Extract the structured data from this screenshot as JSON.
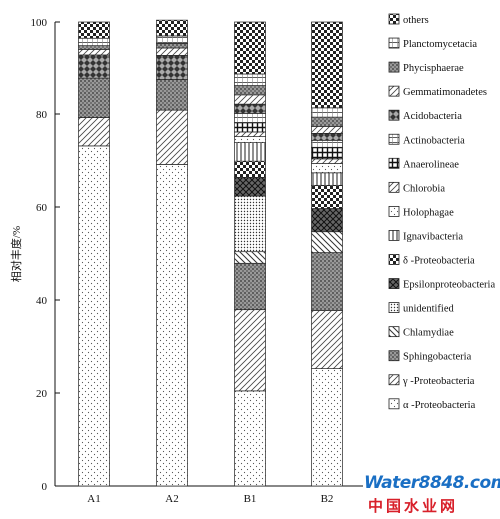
{
  "chart_data": {
    "type": "bar",
    "stacked": true,
    "categories": [
      "A1",
      "A2",
      "B1",
      "B2"
    ],
    "ylabel": "相对丰度/%",
    "ylim": [
      0,
      100
    ],
    "yticks": [
      "0",
      "20",
      "40",
      "60",
      "80",
      "100"
    ],
    "legend_position": "right",
    "series": [
      {
        "name": "α -Proteobacteria",
        "pattern": "dots",
        "values": [
          73.3,
          69.3,
          20.5,
          25.3
        ]
      },
      {
        "name": "γ -Proteobacteria",
        "pattern": "diagonal",
        "values": [
          6.1,
          11.7,
          17.5,
          12.5
        ]
      },
      {
        "name": "Sphingobacteria",
        "pattern": "dense-dots",
        "values": [
          8.5,
          6.6,
          10.0,
          12.5
        ]
      },
      {
        "name": "Chlamydiae",
        "pattern": "backslash",
        "values": [
          0,
          0,
          2.5,
          4.5
        ]
      },
      {
        "name": "unidentified",
        "pattern": "fine-dots",
        "values": [
          0,
          0,
          12.0,
          0
        ]
      },
      {
        "name": "Epsilonproteobacteria",
        "pattern": "crosshatch",
        "values": [
          0,
          0,
          4.0,
          5.0
        ]
      },
      {
        "name": "δ -Proteobacteria",
        "pattern": "checker",
        "values": [
          0,
          0,
          3.5,
          5.0
        ]
      },
      {
        "name": "Ignavibacteria",
        "pattern": "vertical",
        "values": [
          0,
          0,
          4.0,
          2.7
        ]
      },
      {
        "name": "Holophagae",
        "pattern": "dots",
        "values": [
          0,
          0,
          1.3,
          2.0
        ]
      },
      {
        "name": "Chlorobia",
        "pattern": "diagonal",
        "values": [
          0,
          0,
          1.0,
          1.0
        ]
      },
      {
        "name": "Anaerolineae",
        "pattern": "grid",
        "values": [
          0,
          0,
          2.0,
          2.5
        ]
      },
      {
        "name": "Actinobacteria",
        "pattern": "hatch",
        "values": [
          0,
          0,
          2.0,
          1.5
        ]
      },
      {
        "name": "Acidobacteria",
        "pattern": "diamond",
        "values": [
          5.0,
          5.2,
          2.0,
          1.5
        ]
      },
      {
        "name": "Gemmatimonadetes",
        "pattern": "diagonal",
        "values": [
          1.2,
          1.6,
          2.0,
          1.5
        ]
      },
      {
        "name": "Phycisphaerae",
        "pattern": "dense-dots",
        "values": [
          0.8,
          1.0,
          2.0,
          2.0
        ]
      },
      {
        "name": "Planctomycetacia",
        "pattern": "hatch",
        "values": [
          1.6,
          1.6,
          2.5,
          2.0
        ]
      },
      {
        "name": "others",
        "pattern": "checker",
        "values": [
          3.5,
          3.4,
          11.2,
          18.5
        ]
      }
    ]
  },
  "watermark": {
    "line1": "Water8848.com",
    "line2": "中国水业网"
  }
}
